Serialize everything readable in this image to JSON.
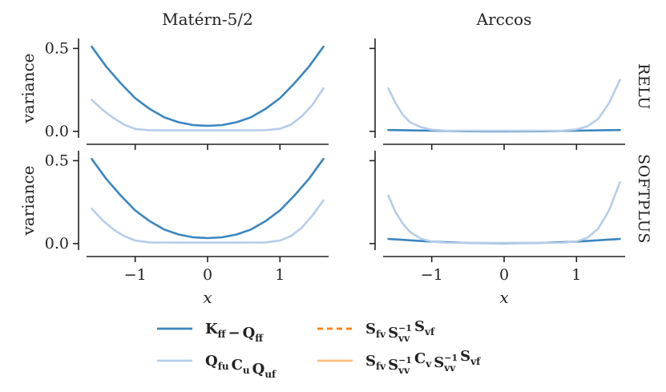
{
  "chart_data": [
    {
      "type": "line",
      "title": "Matérn-5/2",
      "row": "",
      "xlabel": "",
      "ylabel": "variance",
      "xlim": [
        -1.65,
        1.65
      ],
      "ylim": [
        -0.02,
        0.56
      ],
      "xticks": [],
      "yticks": [
        "0.0",
        "0.5"
      ],
      "series": [
        {
          "key": "kff",
          "values": [
            [
              -1.6,
              0.51
            ],
            [
              -1.4,
              0.39
            ],
            [
              -1.2,
              0.29
            ],
            [
              -1.0,
              0.2
            ],
            [
              -0.8,
              0.135
            ],
            [
              -0.6,
              0.085
            ],
            [
              -0.4,
              0.055
            ],
            [
              -0.2,
              0.038
            ],
            [
              0.0,
              0.033
            ],
            [
              0.2,
              0.038
            ],
            [
              0.4,
              0.055
            ],
            [
              0.6,
              0.085
            ],
            [
              0.8,
              0.135
            ],
            [
              1.0,
              0.2
            ],
            [
              1.2,
              0.29
            ],
            [
              1.4,
              0.39
            ],
            [
              1.6,
              0.51
            ]
          ]
        },
        {
          "key": "qcq",
          "values": [
            [
              -1.6,
              0.19
            ],
            [
              -1.45,
              0.13
            ],
            [
              -1.3,
              0.08
            ],
            [
              -1.15,
              0.04
            ],
            [
              -1.0,
              0.015
            ],
            [
              -0.8,
              0.006
            ],
            [
              -0.4,
              0.006
            ],
            [
              0.0,
              0.006
            ],
            [
              0.4,
              0.006
            ],
            [
              0.8,
              0.007
            ],
            [
              1.0,
              0.016
            ],
            [
              1.15,
              0.04
            ],
            [
              1.3,
              0.09
            ],
            [
              1.45,
              0.16
            ],
            [
              1.6,
              0.26
            ]
          ]
        }
      ]
    },
    {
      "type": "line",
      "title": "Arccos",
      "row": "RELU",
      "xlabel": "",
      "ylabel": "",
      "xlim": [
        -1.65,
        1.65
      ],
      "ylim": [
        -0.02,
        0.56
      ],
      "xticks": [],
      "yticks": [],
      "series": [
        {
          "key": "kff",
          "values": [
            [
              -1.6,
              0.008
            ],
            [
              -1.0,
              0.004
            ],
            [
              -0.5,
              0.001
            ],
            [
              0.0,
              0.0
            ],
            [
              0.5,
              0.001
            ],
            [
              1.0,
              0.004
            ],
            [
              1.6,
              0.008
            ]
          ]
        },
        {
          "key": "qcq",
          "values": [
            [
              -1.6,
              0.26
            ],
            [
              -1.5,
              0.17
            ],
            [
              -1.4,
              0.1
            ],
            [
              -1.3,
              0.055
            ],
            [
              -1.15,
              0.025
            ],
            [
              -1.0,
              0.01
            ],
            [
              -0.8,
              0.004
            ],
            [
              0.0,
              0.003
            ],
            [
              0.8,
              0.004
            ],
            [
              1.0,
              0.012
            ],
            [
              1.15,
              0.03
            ],
            [
              1.3,
              0.075
            ],
            [
              1.45,
              0.17
            ],
            [
              1.6,
              0.31
            ]
          ]
        }
      ]
    },
    {
      "type": "line",
      "title": "",
      "row": "",
      "xlabel": "x",
      "ylabel": "variance",
      "xlim": [
        -1.65,
        1.65
      ],
      "ylim": [
        -0.02,
        0.56
      ],
      "xticks": [
        "−1",
        "0",
        "1"
      ],
      "yticks": [
        "0.0",
        "0.5"
      ],
      "series": [
        {
          "key": "kff",
          "values": [
            [
              -1.6,
              0.51
            ],
            [
              -1.4,
              0.39
            ],
            [
              -1.2,
              0.29
            ],
            [
              -1.0,
              0.2
            ],
            [
              -0.8,
              0.135
            ],
            [
              -0.6,
              0.085
            ],
            [
              -0.4,
              0.055
            ],
            [
              -0.2,
              0.038
            ],
            [
              0.0,
              0.033
            ],
            [
              0.2,
              0.038
            ],
            [
              0.4,
              0.055
            ],
            [
              0.6,
              0.085
            ],
            [
              0.8,
              0.135
            ],
            [
              1.0,
              0.2
            ],
            [
              1.2,
              0.29
            ],
            [
              1.4,
              0.39
            ],
            [
              1.6,
              0.51
            ]
          ]
        },
        {
          "key": "qcq",
          "values": [
            [
              -1.6,
              0.21
            ],
            [
              -1.45,
              0.14
            ],
            [
              -1.3,
              0.085
            ],
            [
              -1.15,
              0.045
            ],
            [
              -1.0,
              0.018
            ],
            [
              -0.8,
              0.007
            ],
            [
              -0.4,
              0.006
            ],
            [
              0.0,
              0.006
            ],
            [
              0.4,
              0.006
            ],
            [
              0.8,
              0.007
            ],
            [
              1.0,
              0.018
            ],
            [
              1.15,
              0.045
            ],
            [
              1.3,
              0.095
            ],
            [
              1.45,
              0.17
            ],
            [
              1.6,
              0.26
            ]
          ]
        }
      ]
    },
    {
      "type": "line",
      "title": "",
      "row": "SOFTPLUS",
      "xlabel": "x",
      "ylabel": "",
      "xlim": [
        -1.65,
        1.65
      ],
      "ylim": [
        -0.02,
        0.56
      ],
      "xticks": [
        "−1",
        "0",
        "1"
      ],
      "yticks": [],
      "series": [
        {
          "key": "kff",
          "values": [
            [
              -1.6,
              0.028
            ],
            [
              -1.0,
              0.012
            ],
            [
              -0.5,
              0.004
            ],
            [
              0.0,
              0.002
            ],
            [
              0.5,
              0.004
            ],
            [
              1.0,
              0.012
            ],
            [
              1.6,
              0.028
            ]
          ]
        },
        {
          "key": "qcq",
          "values": [
            [
              -1.6,
              0.29
            ],
            [
              -1.5,
              0.19
            ],
            [
              -1.4,
              0.12
            ],
            [
              -1.3,
              0.07
            ],
            [
              -1.15,
              0.03
            ],
            [
              -1.0,
              0.012
            ],
            [
              -0.8,
              0.005
            ],
            [
              0.0,
              0.004
            ],
            [
              0.8,
              0.005
            ],
            [
              1.0,
              0.013
            ],
            [
              1.15,
              0.035
            ],
            [
              1.3,
              0.09
            ],
            [
              1.45,
              0.2
            ],
            [
              1.6,
              0.37
            ]
          ]
        }
      ]
    }
  ],
  "colors": {
    "kff": "#3a86be",
    "qcq": "#b6cde9",
    "sfv": "#ff7f0e",
    "sfvc": "#fdbe7f"
  },
  "legend": [
    {
      "key": "kff",
      "style": "solid",
      "parts": [
        [
          "K",
          "ff"
        ],
        [
          "−",
          ""
        ],
        [
          "Q",
          "ff"
        ]
      ]
    },
    {
      "key": "qcq",
      "style": "solid",
      "parts": [
        [
          "Q",
          "fu"
        ],
        [
          "C",
          "u"
        ],
        [
          "Q",
          "uf"
        ]
      ]
    },
    {
      "key": "sfv",
      "style": "dashed",
      "parts": [
        [
          "S",
          "fv"
        ],
        [
          "S",
          "vv",
          "−1"
        ],
        [
          "S",
          "vf"
        ]
      ]
    },
    {
      "key": "sfvc",
      "style": "solid",
      "parts": [
        [
          "S",
          "fv"
        ],
        [
          "S",
          "vv",
          "−1"
        ],
        [
          "C",
          "v"
        ],
        [
          "S",
          "vv",
          "−1"
        ],
        [
          "S",
          "vf"
        ]
      ]
    }
  ]
}
